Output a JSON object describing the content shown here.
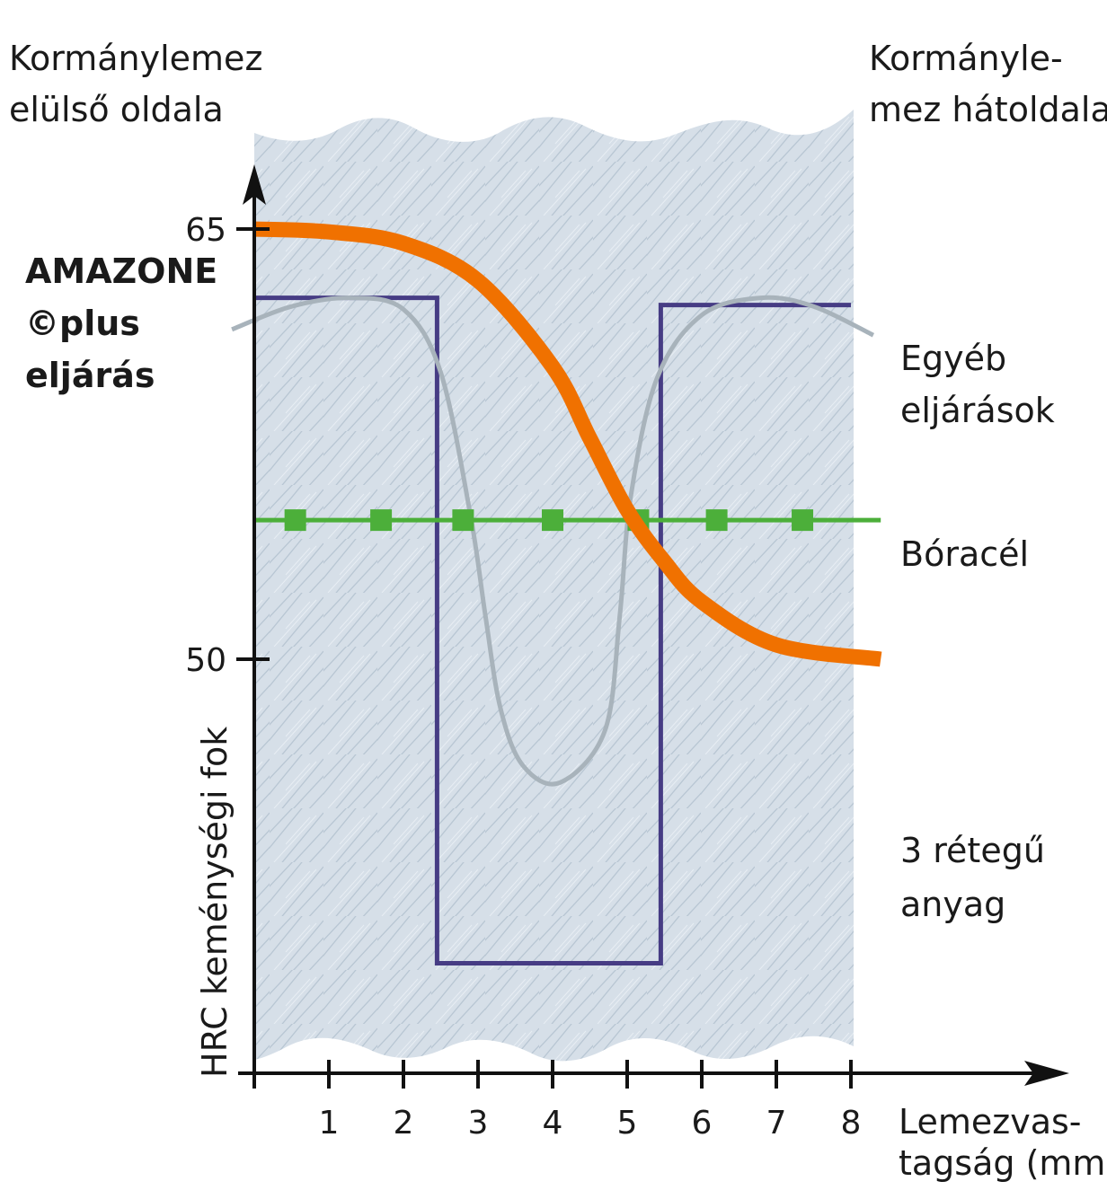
{
  "texts": {
    "front_side": [
      "Kormánylemez",
      "elülső oldala"
    ],
    "back_side": [
      "Kormányle-",
      "mez hátoldala"
    ],
    "amazone": [
      "AMAZONE",
      "©plus",
      "eljárás"
    ],
    "other_methods": [
      "Egyéb",
      "eljárások"
    ],
    "boron_steel": "Bóracél",
    "three_layer": [
      "3 rétegű",
      "anyag"
    ],
    "x_axis_label": [
      "Lemezvas-",
      "tagság (mm)"
    ],
    "y_axis_label": "HRC keménységi fok"
  },
  "colors": {
    "background_band": "#d6dfe8",
    "amazone": "#f07100",
    "other": "#a8b3bb",
    "boron": "#4caf3a",
    "three_layer": "#463c84",
    "axis": "#111111"
  },
  "chart_data": {
    "type": "line",
    "xlabel": "Lemezvas-tagság (mm)",
    "ylabel": "HRC keménységi fok",
    "xlim": [
      0,
      8
    ],
    "x_ticks": [
      "1",
      "2",
      "3",
      "4",
      "5",
      "6",
      "7",
      "8"
    ],
    "y_ticks": [
      "50",
      "65"
    ],
    "series": [
      {
        "name": "AMAZONE ©plus eljárás",
        "color": "#f07100",
        "x": [
          0,
          1,
          2,
          3,
          4,
          4.5,
          5,
          5.5,
          6,
          7,
          8.4
        ],
        "y": [
          65,
          64.9,
          64.5,
          63.2,
          60.2,
          57.7,
          55.2,
          53.4,
          52.0,
          50.5,
          50.0
        ]
      },
      {
        "name": "Egyéb eljárások",
        "color": "#a8b3bb",
        "x": [
          -0.3,
          0.5,
          1.3,
          2.0,
          2.5,
          2.9,
          3.1,
          3.3,
          3.6,
          4.1,
          4.7,
          4.9,
          5.05,
          5.4,
          6.0,
          6.8,
          7.5,
          8.3
        ],
        "y": [
          61.5,
          62.3,
          62.6,
          62.2,
          60.0,
          55.0,
          51.5,
          48.3,
          46.3,
          45.7,
          47.5,
          51.5,
          55.7,
          59.8,
          62.0,
          62.6,
          62.3,
          61.3
        ]
      },
      {
        "name": "Bóracél",
        "color": "#4caf3a",
        "x": [
          0,
          8.4
        ],
        "y": [
          54.85,
          54.85
        ],
        "markers_x": [
          0.55,
          1.7,
          2.8,
          4.0,
          5.15,
          6.2,
          7.35
        ]
      },
      {
        "name": "3 rétegű anyag",
        "color": "#463c84",
        "x": [
          0,
          2.45,
          2.45,
          5.45,
          5.45,
          8
        ],
        "y": [
          62.6,
          62.6,
          39.4,
          39.4,
          62.35,
          62.35
        ]
      }
    ]
  }
}
